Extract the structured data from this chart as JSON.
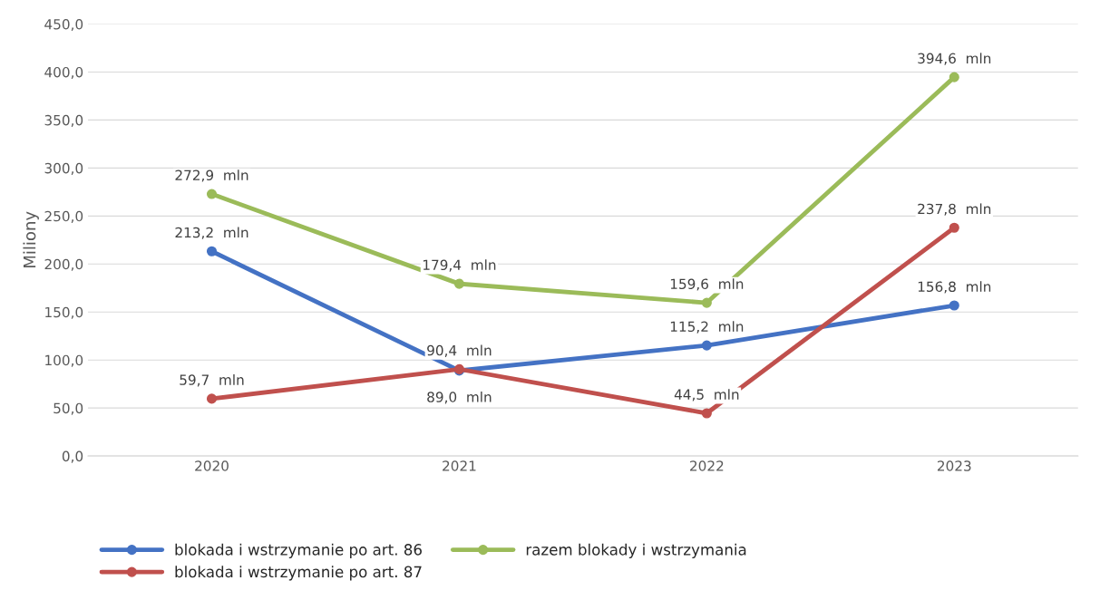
{
  "chart_data": {
    "type": "line",
    "ylabel": "Miliony",
    "categories": [
      "2020",
      "2021",
      "2022",
      "2023"
    ],
    "series": [
      {
        "name": "blokada i wstrzymanie po art. 86",
        "color": "#4472c4",
        "values": [
          213.2,
          89.0,
          115.2,
          156.8
        ],
        "value_labels": [
          "213,2  mln",
          "89,0  mln",
          "115,2  mln",
          "156,8  mln"
        ]
      },
      {
        "name": "blokada i wstrzymanie po art. 87",
        "color": "#c0504d",
        "values": [
          59.7,
          90.4,
          44.5,
          237.8
        ],
        "value_labels": [
          "59,7  mln",
          "90,4  mln",
          "44,5  mln",
          "237,8  mln"
        ]
      },
      {
        "name": "razem blokady i wstrzymania",
        "color": "#9bbb59",
        "values": [
          272.9,
          179.4,
          159.6,
          394.6
        ],
        "value_labels": [
          "272,9  mln",
          "179,4  mln",
          "159,6  mln",
          "394,6  mln"
        ]
      }
    ],
    "ylim": [
      0,
      450
    ],
    "yticks": [
      {
        "value": 0,
        "label": "0,0"
      },
      {
        "value": 50,
        "label": "50,0"
      },
      {
        "value": 100,
        "label": "100,0"
      },
      {
        "value": 150,
        "label": "150,0"
      },
      {
        "value": 200,
        "label": "200,0"
      },
      {
        "value": 250,
        "label": "250,0"
      },
      {
        "value": 300,
        "label": "300,0"
      },
      {
        "value": 350,
        "label": "350,0"
      },
      {
        "value": 400,
        "label": "400,0"
      },
      {
        "value": 450,
        "label": "450,0"
      }
    ],
    "grid": "y",
    "legend": "bottom",
    "marker": "circle",
    "line_style": "solid"
  }
}
